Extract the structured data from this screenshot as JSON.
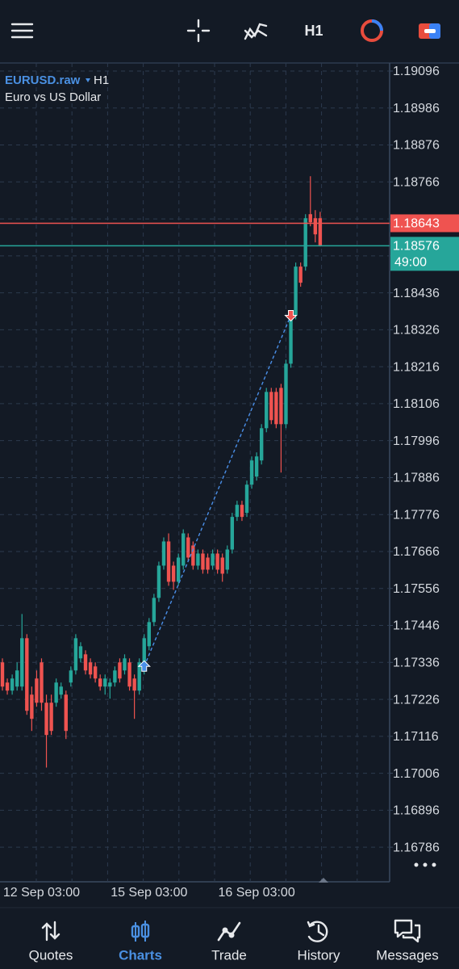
{
  "toolbar": {
    "timeframe": "H1"
  },
  "chart_data": {
    "type": "candlestick",
    "symbol": "EURUSD.raw",
    "timeframe": "H1",
    "description": "Euro vs US Dollar",
    "categories": [
      null,
      null,
      null,
      null,
      null,
      null,
      null,
      null,
      "12 Sep 03:00",
      null,
      null,
      null,
      null,
      null,
      null,
      null,
      null,
      null,
      null,
      null,
      null,
      null,
      null,
      null,
      null,
      null,
      null,
      null,
      null,
      null,
      "15 Sep 03:00",
      null,
      null,
      null,
      null,
      null,
      null,
      null,
      null,
      null,
      null,
      null,
      null,
      null,
      null,
      null,
      null,
      null,
      null,
      null,
      null,
      null,
      "16 Sep 03:00",
      null,
      null,
      null,
      null,
      null,
      null,
      null,
      null,
      null,
      null,
      null,
      null,
      null
    ],
    "open": [
      1.17336,
      1.17276,
      1.17252,
      1.17264,
      1.17264,
      1.17408,
      1.1724,
      1.17288,
      1.17336,
      1.17216,
      1.17216,
      1.17216,
      1.1724,
      1.1724,
      1.17276,
      1.17312,
      1.17348,
      1.1736,
      1.17336,
      1.17324,
      1.17288,
      1.17264,
      1.17264,
      1.17276,
      1.17336,
      1.17312,
      1.17336,
      1.17288,
      1.17252,
      1.17312,
      1.17384,
      1.17456,
      1.17528,
      1.17624,
      1.17696,
      1.17624,
      1.17576,
      1.17624,
      1.17708,
      1.17684,
      1.17624,
      1.1766,
      1.17648,
      1.17624,
      1.1766,
      1.17648,
      1.17612,
      1.17672,
      1.17769,
      1.17805,
      1.17781,
      1.17865,
      1.17889,
      1.17937,
      1.18033,
      1.18141,
      1.18141,
      1.18153,
      1.18045,
      1.18225,
      1.18369,
      1.18514,
      1.18514,
      1.1867,
      1.18658,
      1.18658
    ],
    "high": [
      1.17348,
      1.17288,
      1.173,
      1.17336,
      1.1748,
      1.1742,
      1.17264,
      1.17312,
      1.17348,
      1.1724,
      1.1724,
      1.17288,
      1.17276,
      1.17252,
      1.17324,
      1.1742,
      1.17396,
      1.17372,
      1.17348,
      1.17336,
      1.173,
      1.173,
      1.17288,
      1.17324,
      1.17348,
      1.1736,
      1.17348,
      1.173,
      1.17348,
      1.1742,
      1.17468,
      1.1754,
      1.17636,
      1.17708,
      1.1772,
      1.17636,
      1.1766,
      1.17732,
      1.1772,
      1.17696,
      1.17672,
      1.17672,
      1.1766,
      1.17672,
      1.17672,
      1.1766,
      1.17684,
      1.17781,
      1.17817,
      1.17817,
      1.17877,
      1.17949,
      1.17961,
      1.18045,
      1.18153,
      1.18153,
      1.18153,
      1.18165,
      1.18237,
      1.18381,
      1.18526,
      1.18526,
      1.1867,
      1.18783,
      1.18682,
      1.18677
    ],
    "low": [
      1.17252,
      1.1724,
      1.1724,
      1.17252,
      1.17252,
      1.1718,
      1.17132,
      1.17204,
      1.17192,
      1.17023,
      1.1712,
      1.17204,
      1.17228,
      1.17108,
      1.17264,
      1.173,
      1.17336,
      1.173,
      1.17288,
      1.17276,
      1.17252,
      1.1724,
      1.17228,
      1.17264,
      1.17276,
      1.173,
      1.17252,
      1.17168,
      1.1724,
      1.173,
      1.17372,
      1.17444,
      1.17516,
      1.17612,
      1.17564,
      1.17552,
      1.17564,
      1.17612,
      1.17636,
      1.17612,
      1.17612,
      1.176,
      1.176,
      1.17612,
      1.176,
      1.17576,
      1.176,
      1.1766,
      1.17757,
      1.17757,
      1.17769,
      1.17853,
      1.17877,
      1.17925,
      1.18021,
      1.18045,
      1.18033,
      1.17901,
      1.18033,
      1.18213,
      1.18357,
      1.18454,
      1.18502,
      1.18634,
      1.18586,
      1.18574
    ],
    "close": [
      1.17264,
      1.17252,
      1.17288,
      1.17312,
      1.17408,
      1.17192,
      1.17168,
      1.17216,
      1.17216,
      1.1712,
      1.17132,
      1.17276,
      1.17264,
      1.17132,
      1.17312,
      1.17408,
      1.17384,
      1.17312,
      1.173,
      1.17288,
      1.17264,
      1.17288,
      1.17276,
      1.17312,
      1.17288,
      1.17348,
      1.17264,
      1.17252,
      1.17336,
      1.17408,
      1.17456,
      1.17528,
      1.17624,
      1.17696,
      1.17576,
      1.17576,
      1.17648,
      1.1772,
      1.17648,
      1.17624,
      1.1766,
      1.17612,
      1.17612,
      1.1766,
      1.17612,
      1.176,
      1.17672,
      1.17769,
      1.17805,
      1.17769,
      1.17865,
      1.17937,
      1.17949,
      1.18033,
      1.18141,
      1.18057,
      1.18045,
      1.18045,
      1.18225,
      1.18369,
      1.18514,
      1.18466,
      1.18658,
      1.18646,
      1.1861,
      1.18576
    ],
    "up_color": "#26a69a",
    "down_color": "#ef5350",
    "ylim": [
      1.16683,
      1.1912
    ],
    "yticks": [
      1.19096,
      1.18986,
      1.18876,
      1.18766,
      1.18656,
      1.18546,
      1.18436,
      1.18326,
      1.18216,
      1.18106,
      1.17996,
      1.17886,
      1.17776,
      1.17666,
      1.17556,
      1.17446,
      1.17336,
      1.17226,
      1.17116,
      1.17006,
      1.16896,
      1.16786
    ],
    "grid": true,
    "ask_line": {
      "value": 1.18643,
      "color": "#ef5350"
    },
    "bid_line": {
      "value": 1.18576,
      "color": "#26a69a",
      "countdown": "49:00"
    },
    "trade": {
      "color": "#4a8fe8",
      "entry": {
        "x": 29,
        "price": 1.17324
      },
      "exit": {
        "x": 59,
        "price": 1.18369
      }
    }
  },
  "nav": {
    "items": [
      "Quotes",
      "Charts",
      "Trade",
      "History",
      "Messages"
    ],
    "active": 1,
    "active_color": "#4a90e2"
  }
}
